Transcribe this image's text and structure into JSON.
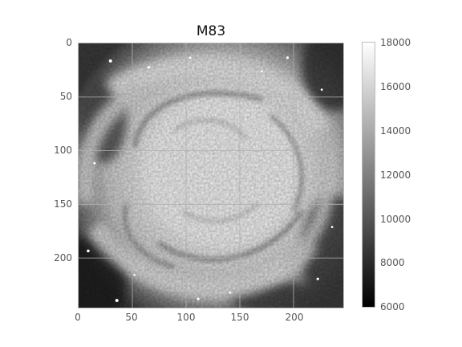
{
  "title": "M83",
  "axes": {
    "x_ticks": [
      "0",
      "50",
      "100",
      "150",
      "200"
    ],
    "y_ticks": [
      "0",
      "50",
      "100",
      "150",
      "200"
    ],
    "x_range": [
      0,
      245
    ],
    "y_range": [
      0,
      245
    ],
    "y_inverted": true,
    "grid": true
  },
  "colorbar": {
    "ticks": [
      "18000",
      "16000",
      "14000",
      "12000",
      "10000",
      "8000",
      "6000"
    ],
    "range": [
      6000,
      18000
    ],
    "colormap": "gray",
    "min_color": "#000000",
    "max_color": "#ffffff"
  },
  "image": {
    "subject": "M83",
    "colors": {
      "core": "#f2f2f2",
      "arms": "#e4e4e4",
      "dust_lanes": "#6e6e6e",
      "outer": "#2e2e2e"
    }
  }
}
